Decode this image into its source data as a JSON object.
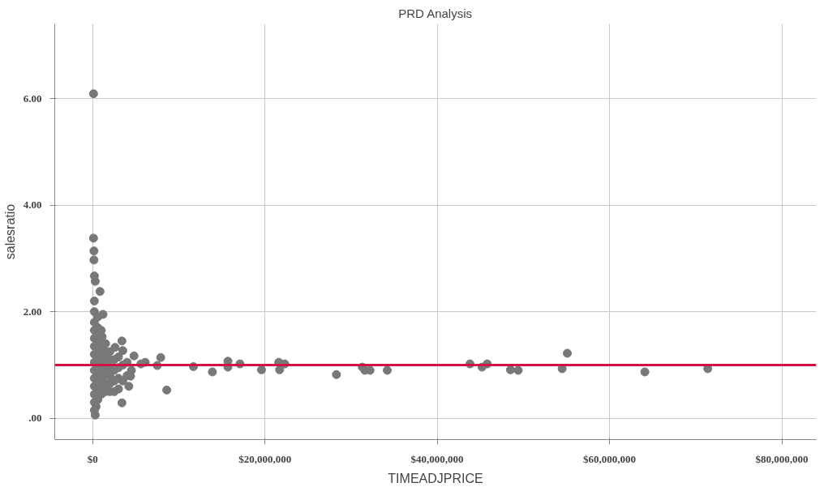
{
  "chart_data": {
    "type": "scatter",
    "title": "PRD Analysis",
    "xlabel": "TIMEADJPRICE",
    "ylabel": "salesratio",
    "x": [
      100000,
      100000,
      150000,
      150000,
      200000,
      300000,
      850000,
      1200000,
      1100000,
      3400000,
      2600000,
      3500000,
      4800000,
      7900000,
      7500000,
      6100000,
      5600000,
      4400000,
      4200000,
      3400000,
      300000,
      400000,
      8600000,
      11700000,
      13900000,
      15700000,
      15700000,
      17100000,
      19600000,
      21600000,
      21700000,
      22300000,
      28300000,
      31300000,
      31600000,
      32200000,
      34200000,
      43800000,
      45200000,
      45800000,
      48500000,
      49400000,
      54500000,
      55100000,
      64100000,
      71400000,
      200000,
      200000,
      200000,
      200000,
      200000,
      200000,
      200000,
      200000,
      200000,
      200000,
      200000,
      200000,
      200000,
      200000,
      600000,
      600000,
      600000,
      600000,
      600000,
      600000,
      600000,
      600000,
      600000,
      600000,
      600000,
      1000000,
      1000000,
      1000000,
      1000000,
      1000000,
      1000000,
      1000000,
      1000000,
      1000000,
      1500000,
      1500000,
      1500000,
      1500000,
      1500000,
      1500000,
      1500000,
      2000000,
      2000000,
      2000000,
      2000000,
      2000000,
      2000000,
      2500000,
      2500000,
      2500000,
      2500000,
      3000000,
      3000000,
      3000000,
      3000000,
      3500000,
      3500000,
      4000000,
      4000000,
      4500000
    ],
    "values": [
      6.09,
      3.38,
      3.14,
      2.97,
      2.67,
      2.57,
      2.38,
      1.95,
      1.53,
      1.45,
      1.33,
      1.27,
      1.17,
      1.14,
      0.99,
      1.05,
      1.02,
      0.79,
      0.6,
      0.29,
      0.06,
      0.22,
      0.53,
      0.97,
      0.87,
      1.07,
      0.96,
      1.02,
      0.91,
      1.05,
      0.91,
      1.02,
      0.82,
      0.96,
      0.9,
      0.9,
      0.9,
      1.02,
      0.96,
      1.02,
      0.91,
      0.9,
      0.93,
      1.22,
      0.87,
      0.93,
      0.15,
      0.3,
      0.45,
      0.6,
      0.75,
      0.9,
      1.05,
      1.2,
      1.35,
      1.5,
      1.65,
      1.8,
      2.0,
      2.2,
      0.35,
      0.5,
      0.65,
      0.8,
      0.95,
      1.1,
      1.25,
      1.4,
      1.55,
      1.7,
      1.9,
      0.45,
      0.6,
      0.75,
      0.9,
      1.05,
      1.2,
      1.35,
      1.5,
      1.65,
      0.5,
      0.65,
      0.8,
      0.95,
      1.1,
      1.25,
      1.4,
      0.5,
      0.65,
      0.8,
      0.95,
      1.1,
      1.25,
      0.5,
      0.7,
      0.9,
      1.1,
      0.55,
      0.75,
      0.95,
      1.15,
      0.7,
      1.0,
      0.8,
      1.05,
      0.9
    ],
    "color": "#787878",
    "marker": "circle",
    "xlim": [
      -4400000,
      84000000
    ],
    "ylim": [
      -0.4,
      7.4
    ],
    "xticks": [
      {
        "value": 0,
        "label": "$0"
      },
      {
        "value": 20000000,
        "label": "$20,000,000"
      },
      {
        "value": 40000000,
        "label": "$40,000,000"
      },
      {
        "value": 60000000,
        "label": "$60,000,000"
      },
      {
        "value": 80000000,
        "label": "$80,000,000"
      }
    ],
    "yticks": [
      {
        "value": 0,
        "label": ".00"
      },
      {
        "value": 2,
        "label": "2.00"
      },
      {
        "value": 4,
        "label": "4.00"
      },
      {
        "value": 6,
        "label": "6.00"
      }
    ],
    "grid": true,
    "ref_lines": [
      {
        "axis": "y",
        "value": 1,
        "color": "#d4123f"
      }
    ]
  }
}
